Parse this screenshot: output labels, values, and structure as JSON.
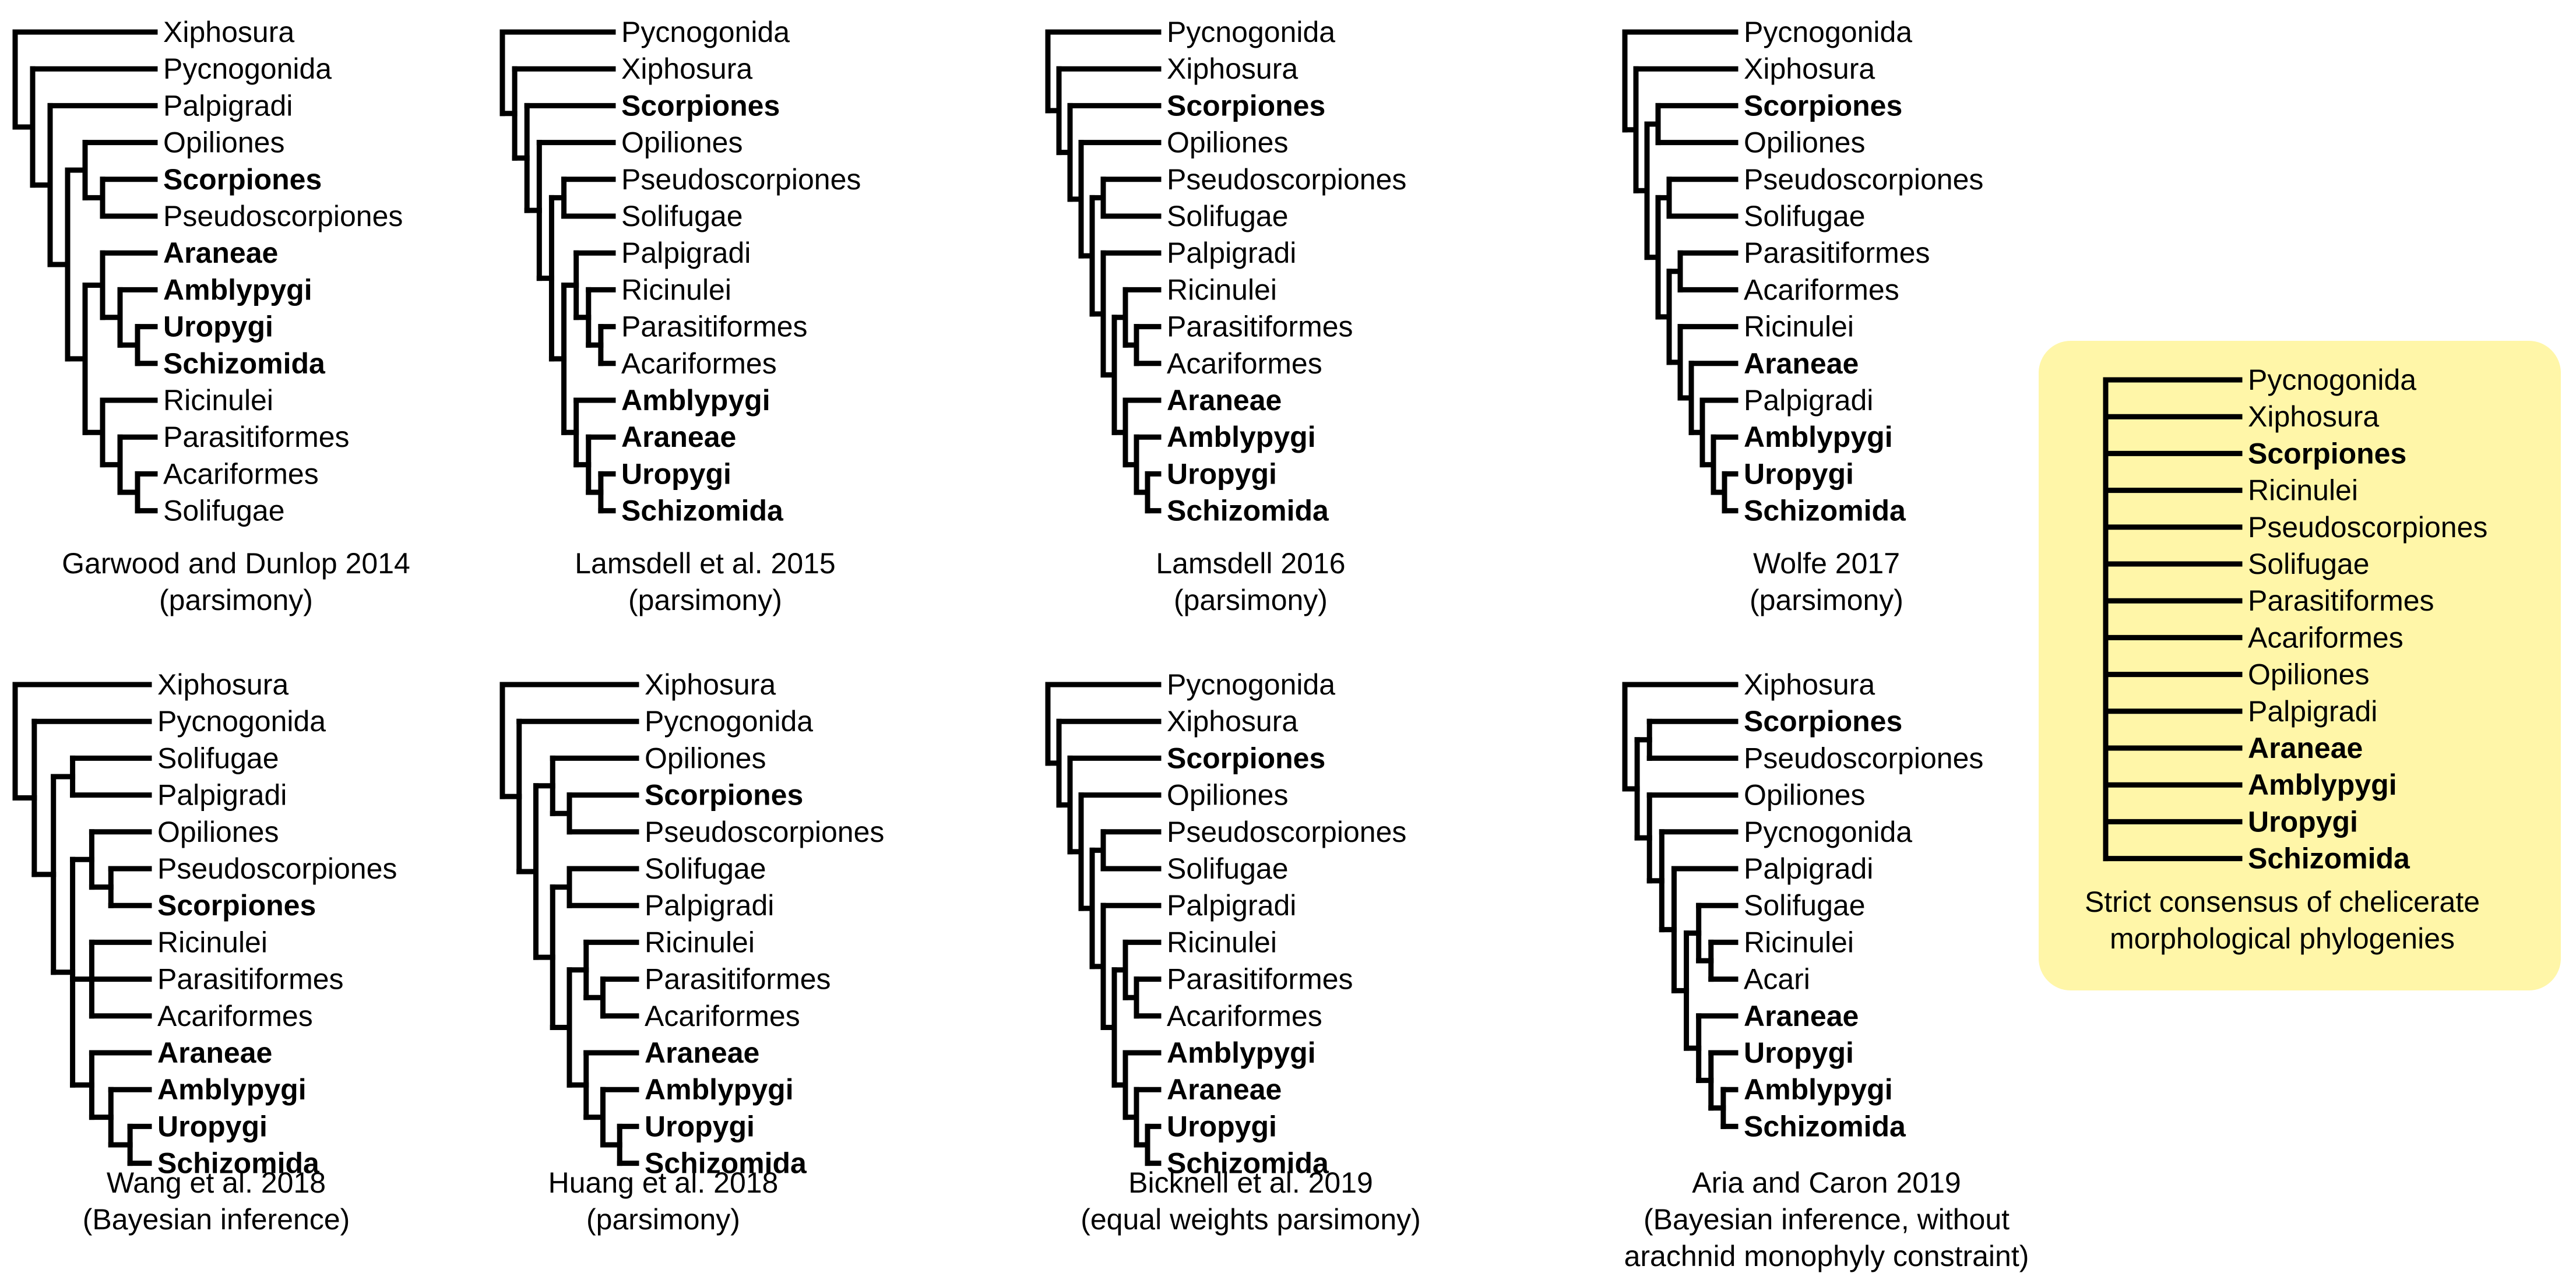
{
  "colors": {
    "outgroup": "#1a9fe8",
    "scorpion": "#ee1c1c",
    "pedipalpi": "#17b517",
    "default": "#000000",
    "consensus_bg": "#fff6a8"
  },
  "trees": [
    {
      "title": "Garwood and Dunlop 2014",
      "method": "(parsimony)",
      "taxa": [
        {
          "name": "Xiphosura",
          "group": "outgroup"
        },
        {
          "name": "Pycnogonida",
          "group": "outgroup"
        },
        {
          "name": "Palpigradi",
          "group": "default"
        },
        {
          "name": "Opiliones",
          "group": "default"
        },
        {
          "name": "Scorpiones",
          "group": "scorpion"
        },
        {
          "name": "Pseudoscorpiones",
          "group": "default"
        },
        {
          "name": "Araneae",
          "group": "pedipalpi"
        },
        {
          "name": "Amblypygi",
          "group": "pedipalpi"
        },
        {
          "name": "Uropygi",
          "group": "pedipalpi"
        },
        {
          "name": "Schizomida",
          "group": "pedipalpi"
        },
        {
          "name": "Ricinulei",
          "group": "default"
        },
        {
          "name": "Parasitiformes",
          "group": "default"
        },
        {
          "name": "Acariformes",
          "group": "default"
        },
        {
          "name": "Solifugae",
          "group": "default"
        }
      ],
      "topology": [
        0,
        [
          1,
          [
            2,
            [
              [
                3,
                [
                  4,
                  5
                ]
              ],
              [
                [
                  6,
                  [
                    7,
                    [
                      8,
                      9
                    ]
                  ]
                ],
                [
                  10,
                  [
                    11,
                    [
                      12,
                      13
                    ]
                  ]
                ]
              ]
            ]
          ]
        ]
      ]
    },
    {
      "title": "Lamsdell et al. 2015",
      "method": "(parsimony)",
      "taxa": [
        {
          "name": "Pycnogonida",
          "group": "outgroup"
        },
        {
          "name": "Xiphosura",
          "group": "outgroup"
        },
        {
          "name": "Scorpiones",
          "group": "scorpion"
        },
        {
          "name": "Opiliones",
          "group": "default"
        },
        {
          "name": "Pseudoscorpiones",
          "group": "default"
        },
        {
          "name": "Solifugae",
          "group": "default"
        },
        {
          "name": "Palpigradi",
          "group": "default"
        },
        {
          "name": "Ricinulei",
          "group": "default"
        },
        {
          "name": "Parasitiformes",
          "group": "default"
        },
        {
          "name": "Acariformes",
          "group": "default"
        },
        {
          "name": "Amblypygi",
          "group": "pedipalpi"
        },
        {
          "name": "Araneae",
          "group": "pedipalpi"
        },
        {
          "name": "Uropygi",
          "group": "pedipalpi"
        },
        {
          "name": "Schizomida",
          "group": "pedipalpi"
        }
      ],
      "topology": [
        0,
        [
          1,
          [
            2,
            [
              3,
              [
                [
                  4,
                  5
                ],
                [
                  [
                    6,
                    [
                      7,
                      [
                        8,
                        9
                      ]
                    ]
                  ],
                  [
                    10,
                    [
                      11,
                      [
                        12,
                        13
                      ]
                    ]
                  ]
                ]
              ]
            ]
          ]
        ]
      ]
    },
    {
      "title": "Lamsdell 2016",
      "method": "(parsimony)",
      "taxa": [
        {
          "name": "Pycnogonida",
          "group": "outgroup"
        },
        {
          "name": "Xiphosura",
          "group": "outgroup"
        },
        {
          "name": "Scorpiones",
          "group": "scorpion"
        },
        {
          "name": "Opiliones",
          "group": "default"
        },
        {
          "name": "Pseudoscorpiones",
          "group": "default"
        },
        {
          "name": "Solifugae",
          "group": "default"
        },
        {
          "name": "Palpigradi",
          "group": "default"
        },
        {
          "name": "Ricinulei",
          "group": "default"
        },
        {
          "name": "Parasitiformes",
          "group": "default"
        },
        {
          "name": "Acariformes",
          "group": "default"
        },
        {
          "name": "Araneae",
          "group": "pedipalpi"
        },
        {
          "name": "Amblypygi",
          "group": "pedipalpi"
        },
        {
          "name": "Uropygi",
          "group": "pedipalpi"
        },
        {
          "name": "Schizomida",
          "group": "pedipalpi"
        }
      ],
      "topology": [
        0,
        [
          1,
          [
            2,
            [
              3,
              [
                [
                  4,
                  5
                ],
                [
                  6,
                  [
                    [
                      7,
                      [
                        8,
                        9
                      ]
                    ],
                    [
                      10,
                      [
                        11,
                        [
                          12,
                          13
                        ]
                      ]
                    ]
                  ]
                ]
              ]
            ]
          ]
        ]
      ]
    },
    {
      "title": "Wolfe 2017",
      "method": "(parsimony)",
      "taxa": [
        {
          "name": "Pycnogonida",
          "group": "outgroup"
        },
        {
          "name": "Xiphosura",
          "group": "outgroup"
        },
        {
          "name": "Scorpiones",
          "group": "scorpion"
        },
        {
          "name": "Opiliones",
          "group": "default"
        },
        {
          "name": "Pseudoscorpiones",
          "group": "default"
        },
        {
          "name": "Solifugae",
          "group": "default"
        },
        {
          "name": "Parasitiformes",
          "group": "default"
        },
        {
          "name": "Acariformes",
          "group": "default"
        },
        {
          "name": "Ricinulei",
          "group": "default"
        },
        {
          "name": "Araneae",
          "group": "pedipalpi"
        },
        {
          "name": "Palpigradi",
          "group": "default"
        },
        {
          "name": "Amblypygi",
          "group": "pedipalpi"
        },
        {
          "name": "Uropygi",
          "group": "pedipalpi"
        },
        {
          "name": "Schizomida",
          "group": "pedipalpi"
        }
      ],
      "topology": [
        0,
        [
          1,
          [
            [
              2,
              3
            ],
            [
              [
                4,
                5
              ],
              [
                [
                  6,
                  7
                ],
                [
                  8,
                  [
                    9,
                    [
                      10,
                      [
                        11,
                        [
                          12,
                          13
                        ]
                      ]
                    ]
                  ]
                ]
              ]
            ]
          ]
        ]
      ]
    },
    {
      "title": "Wang et al. 2018",
      "method": "(Bayesian inference)",
      "taxa": [
        {
          "name": "Xiphosura",
          "group": "outgroup"
        },
        {
          "name": "Pycnogonida",
          "group": "outgroup"
        },
        {
          "name": "Solifugae",
          "group": "default"
        },
        {
          "name": "Palpigradi",
          "group": "default"
        },
        {
          "name": "Opiliones",
          "group": "default"
        },
        {
          "name": "Pseudoscorpiones",
          "group": "default"
        },
        {
          "name": "Scorpiones",
          "group": "scorpion"
        },
        {
          "name": "Ricinulei",
          "group": "default"
        },
        {
          "name": "Parasitiformes",
          "group": "default"
        },
        {
          "name": "Acariformes",
          "group": "default"
        },
        {
          "name": "Araneae",
          "group": "pedipalpi"
        },
        {
          "name": "Amblypygi",
          "group": "pedipalpi"
        },
        {
          "name": "Uropygi",
          "group": "pedipalpi"
        },
        {
          "name": "Schizomida",
          "group": "pedipalpi"
        }
      ],
      "topology": [
        0,
        [
          1,
          [
            [
              2,
              3
            ],
            [
              [
                4,
                [
                  5,
                  6
                ]
              ],
              [
                7,
                8,
                9
              ],
              [
                10,
                [
                  11,
                  [
                    12,
                    13
                  ]
                ]
              ]
            ]
          ]
        ]
      ]
    },
    {
      "title": "Huang et al. 2018",
      "method": "(parsimony)",
      "taxa": [
        {
          "name": "Xiphosura",
          "group": "outgroup"
        },
        {
          "name": "Pycnogonida",
          "group": "outgroup"
        },
        {
          "name": "Opiliones",
          "group": "default"
        },
        {
          "name": "Scorpiones",
          "group": "scorpion"
        },
        {
          "name": "Pseudoscorpiones",
          "group": "default"
        },
        {
          "name": "Solifugae",
          "group": "default"
        },
        {
          "name": "Palpigradi",
          "group": "default"
        },
        {
          "name": "Ricinulei",
          "group": "default"
        },
        {
          "name": "Parasitiformes",
          "group": "default"
        },
        {
          "name": "Acariformes",
          "group": "default"
        },
        {
          "name": "Araneae",
          "group": "pedipalpi"
        },
        {
          "name": "Amblypygi",
          "group": "pedipalpi"
        },
        {
          "name": "Uropygi",
          "group": "pedipalpi"
        },
        {
          "name": "Schizomida",
          "group": "pedipalpi"
        }
      ],
      "topology": [
        0,
        [
          1,
          [
            [
              2,
              [
                3,
                4
              ]
            ],
            [
              [
                5,
                6
              ],
              [
                [
                  7,
                  [
                    8,
                    9
                  ]
                ],
                [
                  10,
                  [
                    11,
                    [
                      12,
                      13
                    ]
                  ]
                ]
              ]
            ]
          ]
        ]
      ]
    },
    {
      "title": "Bicknell et al. 2019",
      "method": "(equal weights parsimony)",
      "taxa": [
        {
          "name": "Pycnogonida",
          "group": "outgroup"
        },
        {
          "name": "Xiphosura",
          "group": "outgroup"
        },
        {
          "name": "Scorpiones",
          "group": "scorpion"
        },
        {
          "name": "Opiliones",
          "group": "default"
        },
        {
          "name": "Pseudoscorpiones",
          "group": "default"
        },
        {
          "name": "Solifugae",
          "group": "default"
        },
        {
          "name": "Palpigradi",
          "group": "default"
        },
        {
          "name": "Ricinulei",
          "group": "default"
        },
        {
          "name": "Parasitiformes",
          "group": "default"
        },
        {
          "name": "Acariformes",
          "group": "default"
        },
        {
          "name": "Amblypygi",
          "group": "pedipalpi"
        },
        {
          "name": "Araneae",
          "group": "pedipalpi"
        },
        {
          "name": "Uropygi",
          "group": "pedipalpi"
        },
        {
          "name": "Schizomida",
          "group": "pedipalpi"
        }
      ],
      "topology": [
        0,
        [
          1,
          [
            2,
            [
              3,
              [
                [
                  4,
                  5
                ],
                [
                  6,
                  [
                    [
                      7,
                      [
                        8,
                        9
                      ]
                    ],
                    [
                      10,
                      [
                        11,
                        [
                          12,
                          13
                        ]
                      ]
                    ]
                  ]
                ]
              ]
            ]
          ]
        ]
      ]
    },
    {
      "title": "Aria and Caron 2019",
      "method": "(Bayesian inference, without",
      "note": "arachnid monophyly constraint)",
      "taxa": [
        {
          "name": "Xiphosura",
          "group": "outgroup"
        },
        {
          "name": "Scorpiones",
          "group": "scorpion"
        },
        {
          "name": "Pseudoscorpiones",
          "group": "default"
        },
        {
          "name": "Opiliones",
          "group": "default"
        },
        {
          "name": "Pycnogonida",
          "group": "outgroup"
        },
        {
          "name": "Palpigradi",
          "group": "default"
        },
        {
          "name": "Solifugae",
          "group": "default"
        },
        {
          "name": "Ricinulei",
          "group": "default"
        },
        {
          "name": "Acari",
          "group": "default"
        },
        {
          "name": "Araneae",
          "group": "pedipalpi"
        },
        {
          "name": "Uropygi",
          "group": "pedipalpi"
        },
        {
          "name": "Amblypygi",
          "group": "pedipalpi"
        },
        {
          "name": "Schizomida",
          "group": "pedipalpi"
        }
      ],
      "topology": [
        0,
        [
          [
            1,
            2
          ],
          [
            3,
            [
              4,
              [
                5,
                [
                  [
                    6,
                    [
                      7,
                      8
                    ]
                  ],
                  [
                    9,
                    [
                      10,
                      [
                        11,
                        12
                      ]
                    ]
                  ]
                ]
              ]
            ]
          ]
        ]
      ]
    },
    {
      "title": "Strict consensus of chelicerate",
      "method": "morphological phylogenies",
      "taxa": [
        {
          "name": "Pycnogonida",
          "group": "outgroup"
        },
        {
          "name": "Xiphosura",
          "group": "outgroup"
        },
        {
          "name": "Scorpiones",
          "group": "scorpion"
        },
        {
          "name": "Ricinulei",
          "group": "default"
        },
        {
          "name": "Pseudoscorpiones",
          "group": "default"
        },
        {
          "name": "Solifugae",
          "group": "default"
        },
        {
          "name": "Parasitiformes",
          "group": "default"
        },
        {
          "name": "Acariformes",
          "group": "default"
        },
        {
          "name": "Opiliones",
          "group": "default"
        },
        {
          "name": "Palpigradi",
          "group": "default"
        },
        {
          "name": "Araneae",
          "group": "pedipalpi"
        },
        {
          "name": "Amblypygi",
          "group": "pedipalpi"
        },
        {
          "name": "Uropygi",
          "group": "pedipalpi"
        },
        {
          "name": "Schizomida",
          "group": "pedipalpi"
        }
      ],
      "topology": [
        0,
        1,
        2,
        3,
        4,
        5,
        6,
        7,
        8,
        9,
        10,
        11,
        12,
        13
      ]
    }
  ]
}
